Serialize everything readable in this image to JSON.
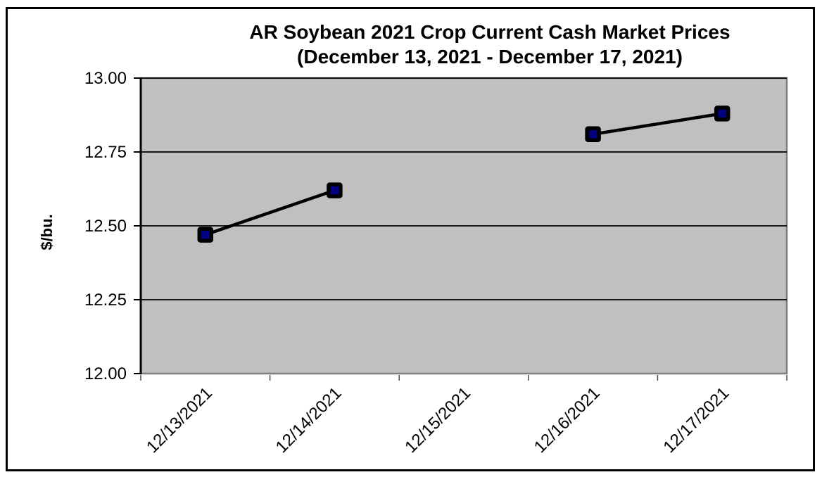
{
  "figure": {
    "title_line1": "AR Soybean 2021 Crop Current Cash Market Prices",
    "title_line2": "(December 13, 2021 - December 17, 2021)"
  },
  "chart_data": {
    "type": "line",
    "title": "AR Soybean 2021 Crop Current Cash Market Prices (December 13, 2021 - December 17, 2021)",
    "categories": [
      "12/13/2021",
      "12/14/2021",
      "12/15/2021",
      "12/16/2021",
      "12/17/2021"
    ],
    "values": [
      12.47,
      12.62,
      null,
      12.81,
      12.88
    ],
    "xlabel": "",
    "ylabel": "$/bu.",
    "ylim": [
      12.0,
      13.0
    ],
    "yticks": [
      12.0,
      12.25,
      12.5,
      12.75,
      13.0
    ],
    "ytick_labels": [
      "12.00",
      "12.25",
      "12.50",
      "12.75",
      "13.00"
    ],
    "grid": "horizontal",
    "legend": "none",
    "marker": "filled-square",
    "colors": {
      "marker_fill": "#000080",
      "marker_border": "#000000",
      "line": "#000000",
      "plot_background": "#c0c0c0",
      "plot_border": "#808080",
      "gridline": "#000000",
      "axis_line": "#000000",
      "chart_background": "#ffffff",
      "outer_border": "#000000"
    }
  }
}
